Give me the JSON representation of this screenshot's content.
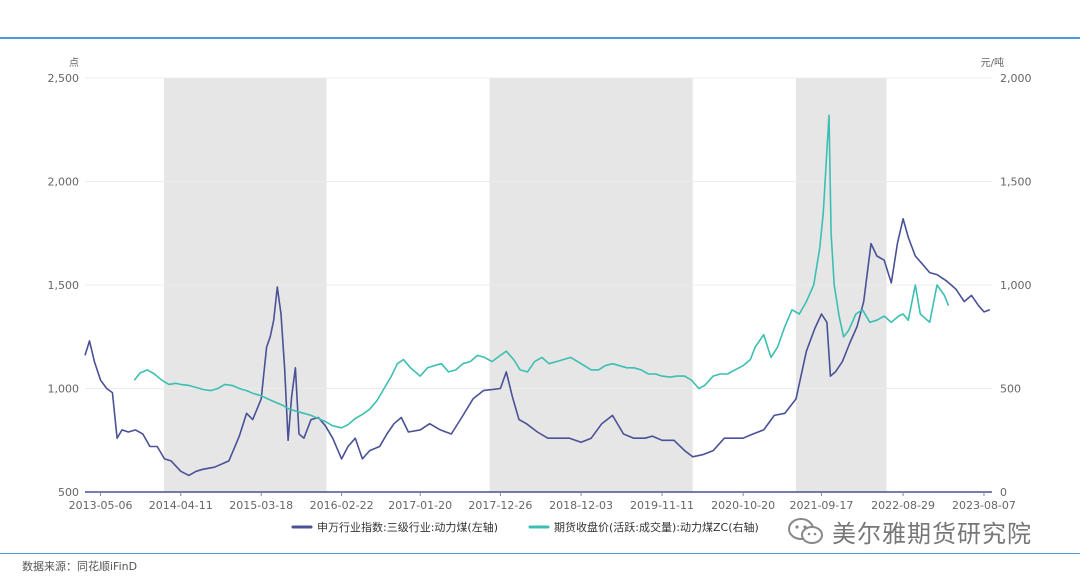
{
  "chart_data": {
    "type": "line",
    "title": "",
    "left_axis": {
      "unit": "点",
      "ticks": [
        500,
        1000,
        1500,
        2000,
        2500
      ],
      "range": [
        500,
        2500
      ]
    },
    "right_axis": {
      "unit": "元/吨",
      "ticks": [
        0,
        500,
        1000,
        1500,
        2000
      ],
      "range": [
        0,
        2000
      ]
    },
    "x_axis": {
      "range": [
        "2013-03-01",
        "2023-09-10"
      ],
      "tick_labels": [
        "2013-05-06",
        "2014-04-11",
        "2015-03-18",
        "2016-02-22",
        "2017-01-20",
        "2017-12-26",
        "2018-12-03",
        "2019-11-11",
        "2020-10-20",
        "2021-09-17",
        "2022-08-29",
        "2023-08-07"
      ]
    },
    "shaded_periods": [
      [
        "2014-01-30",
        "2015-12-20"
      ],
      [
        "2017-11-10",
        "2020-03-20"
      ],
      [
        "2021-06-01",
        "2022-06-20"
      ]
    ],
    "series": [
      {
        "name": "申万行业指数:三级行业:动力煤(左轴)",
        "axis": "left",
        "color": "#4a5196",
        "points": [
          [
            "2013-03-01",
            1160
          ],
          [
            "2013-03-20",
            1230
          ],
          [
            "2013-04-10",
            1130
          ],
          [
            "2013-05-06",
            1040
          ],
          [
            "2013-06-01",
            1000
          ],
          [
            "2013-06-25",
            980
          ],
          [
            "2013-07-15",
            760
          ],
          [
            "2013-08-05",
            800
          ],
          [
            "2013-09-01",
            790
          ],
          [
            "2013-10-01",
            800
          ],
          [
            "2013-11-01",
            780
          ],
          [
            "2013-12-01",
            720
          ],
          [
            "2014-01-01",
            720
          ],
          [
            "2014-02-01",
            660
          ],
          [
            "2014-03-01",
            650
          ],
          [
            "2014-04-11",
            600
          ],
          [
            "2014-05-15",
            580
          ],
          [
            "2014-06-15",
            600
          ],
          [
            "2014-07-15",
            610
          ],
          [
            "2014-09-01",
            620
          ],
          [
            "2014-11-01",
            650
          ],
          [
            "2014-12-15",
            770
          ],
          [
            "2015-01-15",
            880
          ],
          [
            "2015-02-10",
            850
          ],
          [
            "2015-03-18",
            950
          ],
          [
            "2015-04-10",
            1200
          ],
          [
            "2015-04-25",
            1250
          ],
          [
            "2015-05-10",
            1330
          ],
          [
            "2015-05-25",
            1490
          ],
          [
            "2015-06-10",
            1360
          ],
          [
            "2015-06-25",
            1100
          ],
          [
            "2015-07-10",
            750
          ],
          [
            "2015-07-25",
            960
          ],
          [
            "2015-08-10",
            1100
          ],
          [
            "2015-08-25",
            780
          ],
          [
            "2015-09-15",
            760
          ],
          [
            "2015-10-15",
            850
          ],
          [
            "2015-11-15",
            860
          ],
          [
            "2015-12-15",
            820
          ],
          [
            "2016-01-15",
            760
          ],
          [
            "2016-02-22",
            660
          ],
          [
            "2016-03-20",
            720
          ],
          [
            "2016-04-20",
            760
          ],
          [
            "2016-05-20",
            660
          ],
          [
            "2016-06-20",
            700
          ],
          [
            "2016-08-01",
            720
          ],
          [
            "2016-09-01",
            780
          ],
          [
            "2016-10-01",
            830
          ],
          [
            "2016-11-01",
            860
          ],
          [
            "2016-12-01",
            790
          ],
          [
            "2017-01-20",
            800
          ],
          [
            "2017-03-01",
            830
          ],
          [
            "2017-04-15",
            800
          ],
          [
            "2017-06-01",
            780
          ],
          [
            "2017-07-15",
            860
          ],
          [
            "2017-09-01",
            950
          ],
          [
            "2017-10-15",
            990
          ],
          [
            "2017-12-26",
            1000
          ],
          [
            "2018-01-20",
            1080
          ],
          [
            "2018-02-15",
            960
          ],
          [
            "2018-03-15",
            850
          ],
          [
            "2018-04-15",
            830
          ],
          [
            "2018-06-01",
            790
          ],
          [
            "2018-07-15",
            760
          ],
          [
            "2018-09-01",
            760
          ],
          [
            "2018-10-15",
            760
          ],
          [
            "2018-12-03",
            740
          ],
          [
            "2019-01-15",
            760
          ],
          [
            "2019-03-01",
            830
          ],
          [
            "2019-04-15",
            870
          ],
          [
            "2019-06-01",
            780
          ],
          [
            "2019-07-15",
            760
          ],
          [
            "2019-09-01",
            760
          ],
          [
            "2019-10-01",
            770
          ],
          [
            "2019-11-11",
            750
          ],
          [
            "2020-01-01",
            750
          ],
          [
            "2020-02-15",
            700
          ],
          [
            "2020-03-20",
            670
          ],
          [
            "2020-05-01",
            680
          ],
          [
            "2020-06-15",
            700
          ],
          [
            "2020-08-01",
            760
          ],
          [
            "2020-09-15",
            760
          ],
          [
            "2020-10-20",
            760
          ],
          [
            "2020-12-01",
            780
          ],
          [
            "2021-01-15",
            800
          ],
          [
            "2021-03-01",
            870
          ],
          [
            "2021-04-15",
            880
          ],
          [
            "2021-06-01",
            950
          ],
          [
            "2021-07-15",
            1180
          ],
          [
            "2021-08-20",
            1290
          ],
          [
            "2021-09-17",
            1360
          ],
          [
            "2021-10-10",
            1320
          ],
          [
            "2021-10-25",
            1060
          ],
          [
            "2021-11-15",
            1080
          ],
          [
            "2021-12-15",
            1130
          ],
          [
            "2022-01-15",
            1220
          ],
          [
            "2022-02-15",
            1300
          ],
          [
            "2022-03-15",
            1420
          ],
          [
            "2022-04-15",
            1700
          ],
          [
            "2022-05-10",
            1640
          ],
          [
            "2022-06-10",
            1620
          ],
          [
            "2022-07-10",
            1510
          ],
          [
            "2022-08-05",
            1700
          ],
          [
            "2022-08-29",
            1820
          ],
          [
            "2022-09-20",
            1730
          ],
          [
            "2022-10-20",
            1640
          ],
          [
            "2022-11-20",
            1600
          ],
          [
            "2022-12-20",
            1560
          ],
          [
            "2023-01-20",
            1550
          ],
          [
            "2023-03-01",
            1520
          ],
          [
            "2023-04-10",
            1480
          ],
          [
            "2023-05-15",
            1420
          ],
          [
            "2023-06-15",
            1450
          ],
          [
            "2023-07-15",
            1400
          ],
          [
            "2023-08-07",
            1370
          ],
          [
            "2023-09-01",
            1380
          ]
        ]
      },
      {
        "name": "期货收盘价(活跃:成交量):动力煤ZC(右轴)",
        "axis": "right",
        "color": "#3cbfb3",
        "points": [
          [
            "2013-09-26",
            540
          ],
          [
            "2013-10-20",
            575
          ],
          [
            "2013-11-20",
            590
          ],
          [
            "2013-12-20",
            570
          ],
          [
            "2014-01-20",
            540
          ],
          [
            "2014-02-20",
            520
          ],
          [
            "2014-03-20",
            525
          ],
          [
            "2014-04-11",
            520
          ],
          [
            "2014-05-15",
            515
          ],
          [
            "2014-06-15",
            505
          ],
          [
            "2014-07-15",
            495
          ],
          [
            "2014-08-15",
            490
          ],
          [
            "2014-09-15",
            500
          ],
          [
            "2014-10-15",
            520
          ],
          [
            "2014-11-15",
            515
          ],
          [
            "2014-12-15",
            500
          ],
          [
            "2015-01-15",
            490
          ],
          [
            "2015-02-15",
            475
          ],
          [
            "2015-03-18",
            465
          ],
          [
            "2015-04-15",
            450
          ],
          [
            "2015-05-15",
            435
          ],
          [
            "2015-06-15",
            420
          ],
          [
            "2015-07-15",
            400
          ],
          [
            "2015-08-15",
            390
          ],
          [
            "2015-09-15",
            380
          ],
          [
            "2015-10-15",
            370
          ],
          [
            "2015-11-15",
            355
          ],
          [
            "2015-12-15",
            340
          ],
          [
            "2016-01-15",
            320
          ],
          [
            "2016-02-22",
            310
          ],
          [
            "2016-03-20",
            325
          ],
          [
            "2016-04-20",
            355
          ],
          [
            "2016-05-20",
            375
          ],
          [
            "2016-06-20",
            400
          ],
          [
            "2016-07-20",
            440
          ],
          [
            "2016-08-20",
            500
          ],
          [
            "2016-09-20",
            560
          ],
          [
            "2016-10-15",
            620
          ],
          [
            "2016-11-10",
            640
          ],
          [
            "2016-12-10",
            600
          ],
          [
            "2017-01-20",
            560
          ],
          [
            "2017-02-20",
            600
          ],
          [
            "2017-03-20",
            610
          ],
          [
            "2017-04-20",
            620
          ],
          [
            "2017-05-20",
            580
          ],
          [
            "2017-06-20",
            590
          ],
          [
            "2017-07-20",
            620
          ],
          [
            "2017-08-20",
            630
          ],
          [
            "2017-09-20",
            660
          ],
          [
            "2017-10-20",
            650
          ],
          [
            "2017-11-20",
            630
          ],
          [
            "2017-12-26",
            660
          ],
          [
            "2018-01-20",
            680
          ],
          [
            "2018-02-20",
            640
          ],
          [
            "2018-03-20",
            590
          ],
          [
            "2018-04-20",
            580
          ],
          [
            "2018-05-20",
            630
          ],
          [
            "2018-06-20",
            650
          ],
          [
            "2018-07-20",
            620
          ],
          [
            "2018-08-20",
            630
          ],
          [
            "2018-09-20",
            640
          ],
          [
            "2018-10-20",
            650
          ],
          [
            "2018-12-03",
            620
          ],
          [
            "2019-01-15",
            590
          ],
          [
            "2019-02-15",
            590
          ],
          [
            "2019-03-15",
            610
          ],
          [
            "2019-04-15",
            620
          ],
          [
            "2019-05-15",
            610
          ],
          [
            "2019-06-15",
            600
          ],
          [
            "2019-07-15",
            600
          ],
          [
            "2019-08-15",
            590
          ],
          [
            "2019-09-15",
            570
          ],
          [
            "2019-10-15",
            570
          ],
          [
            "2019-11-11",
            560
          ],
          [
            "2019-12-15",
            555
          ],
          [
            "2020-01-15",
            560
          ],
          [
            "2020-02-15",
            560
          ],
          [
            "2020-03-15",
            540
          ],
          [
            "2020-04-15",
            500
          ],
          [
            "2020-05-10",
            515
          ],
          [
            "2020-06-15",
            560
          ],
          [
            "2020-07-15",
            570
          ],
          [
            "2020-08-15",
            570
          ],
          [
            "2020-09-15",
            590
          ],
          [
            "2020-10-20",
            610
          ],
          [
            "2020-11-20",
            640
          ],
          [
            "2020-12-10",
            700
          ],
          [
            "2021-01-15",
            760
          ],
          [
            "2021-02-15",
            650
          ],
          [
            "2021-03-15",
            700
          ],
          [
            "2021-04-15",
            800
          ],
          [
            "2021-05-15",
            880
          ],
          [
            "2021-06-15",
            860
          ],
          [
            "2021-07-15",
            920
          ],
          [
            "2021-08-15",
            1000
          ],
          [
            "2021-09-10",
            1180
          ],
          [
            "2021-09-25",
            1350
          ],
          [
            "2021-10-10",
            1650
          ],
          [
            "2021-10-19",
            1820
          ],
          [
            "2021-10-28",
            1250
          ],
          [
            "2021-11-10",
            1000
          ],
          [
            "2021-12-01",
            850
          ],
          [
            "2021-12-20",
            750
          ],
          [
            "2022-01-10",
            780
          ],
          [
            "2022-02-10",
            860
          ],
          [
            "2022-03-10",
            880
          ],
          [
            "2022-04-10",
            820
          ],
          [
            "2022-05-10",
            830
          ],
          [
            "2022-06-10",
            850
          ],
          [
            "2022-07-10",
            820
          ],
          [
            "2022-08-10",
            850
          ],
          [
            "2022-08-29",
            860
          ],
          [
            "2022-09-20",
            830
          ],
          [
            "2022-10-20",
            1000
          ],
          [
            "2022-11-10",
            860
          ],
          [
            "2022-12-20",
            820
          ],
          [
            "2023-01-20",
            1000
          ],
          [
            "2023-02-20",
            950
          ],
          [
            "2023-03-10",
            900
          ]
        ]
      }
    ],
    "legend_position": "bottom-center"
  },
  "source": "数据来源：同花顺iFinD",
  "watermark": "美尔雅期货研究院",
  "icons": {
    "watermark_icon": "wechat-icon"
  }
}
